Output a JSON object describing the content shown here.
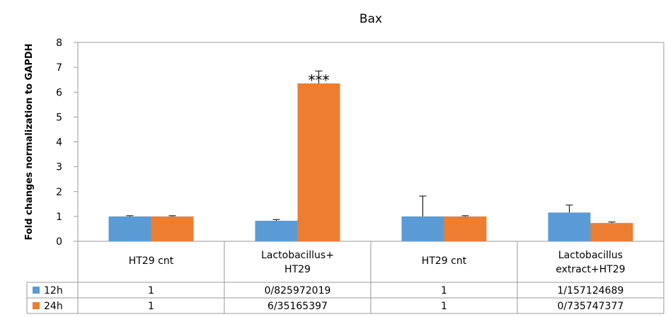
{
  "chart_data": {
    "type": "bar",
    "title": "Bax",
    "ylabel": "Fold changes normalization to GAPDH",
    "xlabel": "",
    "ylim": [
      0,
      8
    ],
    "yticks": [
      "0",
      "1",
      "2",
      "3",
      "4",
      "5",
      "6",
      "7",
      "8"
    ],
    "grid": false,
    "categories": [
      {
        "line1": "HT29 cnt",
        "line2": ""
      },
      {
        "line1": "Lactobacillus+",
        "line2": "HT29"
      },
      {
        "line1": "HT29 cnt",
        "line2": ""
      },
      {
        "line1": "Lactobacillus",
        "line2": "extract+HT29"
      }
    ],
    "series": [
      {
        "name": "12h",
        "color": "#5b9bd5",
        "values": [
          1.0,
          0.826,
          1.0,
          1.157
        ],
        "errors": [
          0.03,
          0.05,
          0.82,
          0.3
        ],
        "table_values": [
          "1",
          "0/825972019",
          "1",
          "1/157124689"
        ]
      },
      {
        "name": "24h",
        "color": "#ed7d31",
        "values": [
          1.0,
          6.352,
          1.0,
          0.736
        ],
        "errors": [
          0.03,
          0.5,
          0.03,
          0.04
        ],
        "table_values": [
          "1",
          "6/35165397",
          "1",
          "0/735747377"
        ]
      }
    ],
    "annotations": [
      {
        "text": "***",
        "category_index": 1,
        "series_index": 1
      }
    ]
  }
}
